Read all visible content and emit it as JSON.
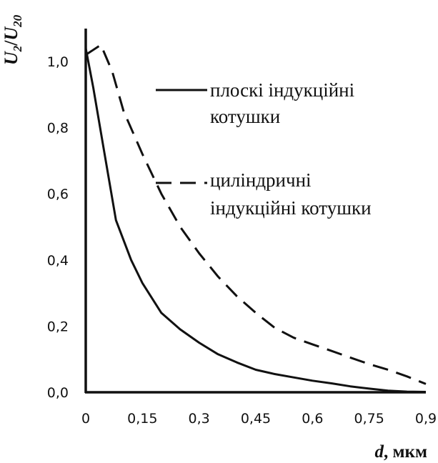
{
  "chart_data": {
    "type": "line",
    "ylabel": {
      "main": "U",
      "sub1": "2",
      "sep": "/",
      "main2": "U",
      "sub2": "20"
    },
    "xlabel": {
      "var": "d",
      "unit": ", мкм"
    },
    "xlim": [
      0,
      0.9
    ],
    "ylim": [
      0,
      1.05
    ],
    "x_ticks": [
      "0",
      "0,15",
      "0,3",
      "0,45",
      "0,6",
      "0,75",
      "0,9"
    ],
    "x_tick_values": [
      0,
      0.15,
      0.3,
      0.45,
      0.6,
      0.75,
      0.9
    ],
    "y_ticks": [
      "0,0",
      "0,2",
      "0,4",
      "0,6",
      "0,8",
      "1,0"
    ],
    "y_tick_values": [
      0,
      0.2,
      0.4,
      0.6,
      0.8,
      1.0
    ],
    "grid": false,
    "legend_position": "top-right",
    "series": [
      {
        "name": "плоскі індукційні котушки",
        "name_lines": [
          "плоскі індукційні",
          "котушки"
        ],
        "style": "solid",
        "color": "#111111",
        "points": [
          [
            0.0,
            1.04
          ],
          [
            0.02,
            0.92
          ],
          [
            0.05,
            0.72
          ],
          [
            0.08,
            0.52
          ],
          [
            0.12,
            0.4
          ],
          [
            0.15,
            0.33
          ],
          [
            0.2,
            0.24
          ],
          [
            0.25,
            0.19
          ],
          [
            0.3,
            0.15
          ],
          [
            0.35,
            0.115
          ],
          [
            0.4,
            0.09
          ],
          [
            0.45,
            0.068
          ],
          [
            0.5,
            0.055
          ],
          [
            0.55,
            0.045
          ],
          [
            0.6,
            0.035
          ],
          [
            0.65,
            0.027
          ],
          [
            0.7,
            0.018
          ],
          [
            0.75,
            0.011
          ],
          [
            0.8,
            0.005
          ],
          [
            0.85,
            0.002
          ],
          [
            0.9,
            0.001
          ]
        ]
      },
      {
        "name": "циліндричні індукційні котушки",
        "name_lines": [
          "циліндричні",
          "індукційні котушки"
        ],
        "style": "dashed",
        "color": "#111111",
        "points": [
          [
            0.0,
            1.02
          ],
          [
            0.04,
            1.05
          ],
          [
            0.07,
            0.97
          ],
          [
            0.1,
            0.85
          ],
          [
            0.15,
            0.72
          ],
          [
            0.2,
            0.6
          ],
          [
            0.25,
            0.5
          ],
          [
            0.3,
            0.42
          ],
          [
            0.35,
            0.35
          ],
          [
            0.4,
            0.29
          ],
          [
            0.45,
            0.24
          ],
          [
            0.5,
            0.195
          ],
          [
            0.55,
            0.165
          ],
          [
            0.6,
            0.145
          ],
          [
            0.65,
            0.125
          ],
          [
            0.7,
            0.105
          ],
          [
            0.75,
            0.085
          ],
          [
            0.8,
            0.068
          ],
          [
            0.85,
            0.048
          ],
          [
            0.9,
            0.025
          ]
        ]
      }
    ]
  }
}
